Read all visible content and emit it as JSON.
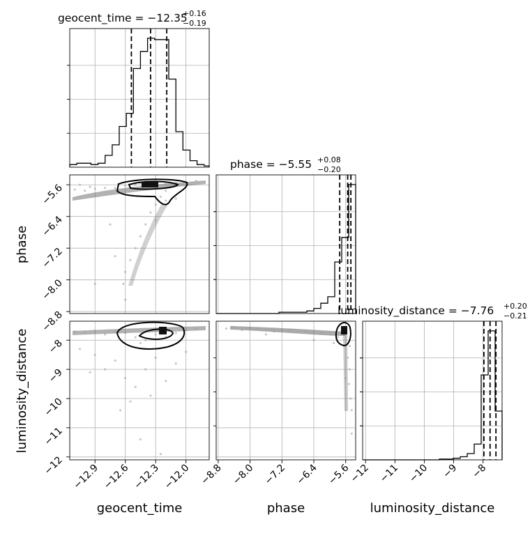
{
  "chart_data": [
    {
      "type": "corner",
      "parameters": [
        "geocent_time",
        "phase",
        "luminosity_distance"
      ],
      "titles": [
        {
          "label": "geocent_time = −12.35",
          "plus": "+0.16",
          "minus": "−0.19"
        },
        {
          "label": "phase = −5.55",
          "plus": "+0.08",
          "minus": "−0.20"
        },
        {
          "label": "luminosity_distance = −7.76",
          "plus": "+0.20",
          "minus": "−0.21"
        }
      ],
      "ranges": {
        "geocent_time": [
          -13.15,
          -11.77
        ],
        "phase": [
          -8.85,
          -5.35
        ],
        "luminosity_distance": [
          -12.1,
          -7.35
        ]
      },
      "ticks": {
        "geocent_time": [
          "−12.9",
          "−12.6",
          "−12.3",
          "−12.0"
        ],
        "phase_x": [
          "−8.8",
          "−8.0",
          "−7.2",
          "−6.4",
          "−5.6"
        ],
        "phase_y": [
          "−5.6",
          "−6.4",
          "−7.2",
          "−8.0",
          "−8.8"
        ],
        "luminosity_distance_x": [
          "−12",
          "−11",
          "−10",
          "−9",
          "−8"
        ],
        "luminosity_distance_y": [
          "−8",
          "−9",
          "−10",
          "−11",
          "−12"
        ]
      },
      "tick_values": {
        "geocent_time": [
          -12.9,
          -12.6,
          -12.3,
          -12.0
        ],
        "phase": [
          -8.8,
          -8.0,
          -7.2,
          -6.4,
          -5.6
        ],
        "luminosity_distance": [
          -12,
          -11,
          -10,
          -9,
          -8
        ]
      },
      "quantiles": {
        "geocent_time": [
          -12.54,
          -12.35,
          -12.19
        ],
        "phase": [
          -5.75,
          -5.55,
          -5.47
        ],
        "luminosity_distance": [
          -7.97,
          -7.76,
          -7.56
        ]
      },
      "histograms": {
        "geocent_time": {
          "edges": [
            -13.15,
            -13.08,
            -13.01,
            -12.94,
            -12.87,
            -12.8,
            -12.73,
            -12.66,
            -12.59,
            -12.52,
            -12.45,
            -12.38,
            -12.31,
            -12.24,
            -12.17,
            -12.1,
            -12.03,
            -11.96,
            -11.89,
            -11.82,
            -11.77
          ],
          "counts": [
            2,
            3,
            3,
            2,
            3,
            9,
            17,
            31,
            41,
            75,
            88,
            98,
            97,
            97,
            67,
            27,
            13,
            5,
            2,
            1
          ]
        },
        "phase": {
          "edges": [
            -8.85,
            -8.675,
            -8.5,
            -8.325,
            -8.15,
            -7.975,
            -7.8,
            -7.625,
            -7.45,
            -7.275,
            -7.1,
            -6.925,
            -6.75,
            -6.575,
            -6.4,
            -6.225,
            -6.05,
            -5.875,
            -5.7,
            -5.525,
            -5.35
          ],
          "counts": [
            0,
            0,
            0,
            0,
            0,
            0,
            0,
            0,
            0,
            1,
            1,
            1,
            1,
            2,
            4,
            8,
            13,
            40,
            59,
            100
          ]
        },
        "luminosity_distance": {
          "edges": [
            -12.1,
            -11.8625,
            -11.625,
            -11.3875,
            -11.15,
            -10.9125,
            -10.675,
            -10.4375,
            -10.2,
            -9.9625,
            -9.725,
            -9.4875,
            -9.25,
            -9.0125,
            -8.775,
            -8.5375,
            -8.3,
            -8.0625,
            -7.825,
            -7.5875,
            -7.35
          ],
          "counts": [
            0,
            0,
            0,
            0,
            0,
            0,
            0,
            0,
            0,
            0,
            0,
            0.5,
            0.5,
            1,
            2,
            4,
            10,
            54,
            82,
            31
          ]
        }
      },
      "samples": {
        "phase_vs_geocent": [
          [
            -13.1,
            -5.72
          ],
          [
            -13.0,
            -5.75
          ],
          [
            -12.9,
            -5.7
          ],
          [
            -12.8,
            -5.68
          ],
          [
            -12.7,
            -5.68
          ],
          [
            -12.6,
            -5.62
          ],
          [
            -12.5,
            -5.6
          ],
          [
            -12.45,
            -5.55
          ],
          [
            -12.4,
            -5.52
          ],
          [
            -12.3,
            -5.55
          ],
          [
            -12.2,
            -5.58
          ],
          [
            -12.1,
            -5.55
          ],
          [
            -12.0,
            -5.52
          ],
          [
            -11.9,
            -5.5
          ],
          [
            -12.2,
            -5.75
          ],
          [
            -12.25,
            -5.9
          ],
          [
            -12.3,
            -6.1
          ],
          [
            -12.35,
            -6.3
          ],
          [
            -12.4,
            -6.6
          ],
          [
            -12.45,
            -6.9
          ],
          [
            -12.5,
            -7.2
          ],
          [
            -12.55,
            -7.5
          ],
          [
            -12.6,
            -7.8
          ],
          [
            -12.62,
            -8.1
          ],
          [
            -12.6,
            -8.5
          ],
          [
            -12.9,
            -8.1
          ],
          [
            -12.7,
            -7.4
          ],
          [
            -12.75,
            -6.6
          ],
          [
            -12.2,
            -6.0
          ],
          [
            -12.1,
            -5.95
          ],
          [
            -12.95,
            -5.65
          ],
          [
            -13.05,
            -5.6
          ],
          [
            -12.3,
            -6.5
          ]
        ],
        "dist_vs_geocent": [
          [
            -13.1,
            -7.7
          ],
          [
            -13.0,
            -7.75
          ],
          [
            -12.9,
            -7.7
          ],
          [
            -12.8,
            -7.8
          ],
          [
            -12.7,
            -7.7
          ],
          [
            -12.6,
            -7.75
          ],
          [
            -12.5,
            -7.9
          ],
          [
            -12.45,
            -8.1
          ],
          [
            -12.4,
            -8.0
          ],
          [
            -12.3,
            -7.8
          ],
          [
            -12.25,
            -7.7
          ],
          [
            -12.2,
            -7.9
          ],
          [
            -12.1,
            -7.75
          ],
          [
            -12.0,
            -7.65
          ],
          [
            -11.9,
            -7.6
          ],
          [
            -12.9,
            -8.5
          ],
          [
            -12.8,
            -9.0
          ],
          [
            -12.7,
            -8.7
          ],
          [
            -12.6,
            -9.3
          ],
          [
            -12.5,
            -9.6
          ],
          [
            -12.4,
            -9.0
          ],
          [
            -12.3,
            -8.6
          ],
          [
            -12.2,
            -9.4
          ],
          [
            -12.1,
            -8.8
          ],
          [
            -12.0,
            -8.4
          ],
          [
            -12.55,
            -10.1
          ],
          [
            -12.35,
            -9.9
          ],
          [
            -12.65,
            -10.4
          ],
          [
            -12.45,
            -11.4
          ],
          [
            -12.25,
            -11.9
          ],
          [
            -13.05,
            -8.3
          ],
          [
            -12.95,
            -9.1
          ]
        ],
        "dist_vs_phase": [
          [
            -8.6,
            -7.6
          ],
          [
            -8.2,
            -7.65
          ],
          [
            -7.8,
            -7.6
          ],
          [
            -7.4,
            -7.7
          ],
          [
            -7.0,
            -7.65
          ],
          [
            -6.6,
            -7.7
          ],
          [
            -6.2,
            -7.75
          ],
          [
            -6.0,
            -7.8
          ],
          [
            -5.8,
            -7.9
          ],
          [
            -5.6,
            -7.7
          ],
          [
            -5.5,
            -8.2
          ],
          [
            -5.55,
            -8.6
          ],
          [
            -5.5,
            -9.0
          ],
          [
            -5.52,
            -9.5
          ],
          [
            -5.48,
            -10.0
          ],
          [
            -5.45,
            -10.4
          ],
          [
            -5.9,
            -8.1
          ],
          [
            -6.4,
            -8.0
          ],
          [
            -7.6,
            -7.8
          ],
          [
            -8.4,
            -7.55
          ],
          [
            -5.45,
            -11.2
          ],
          [
            -5.6,
            -9.3
          ]
        ]
      }
    }
  ]
}
